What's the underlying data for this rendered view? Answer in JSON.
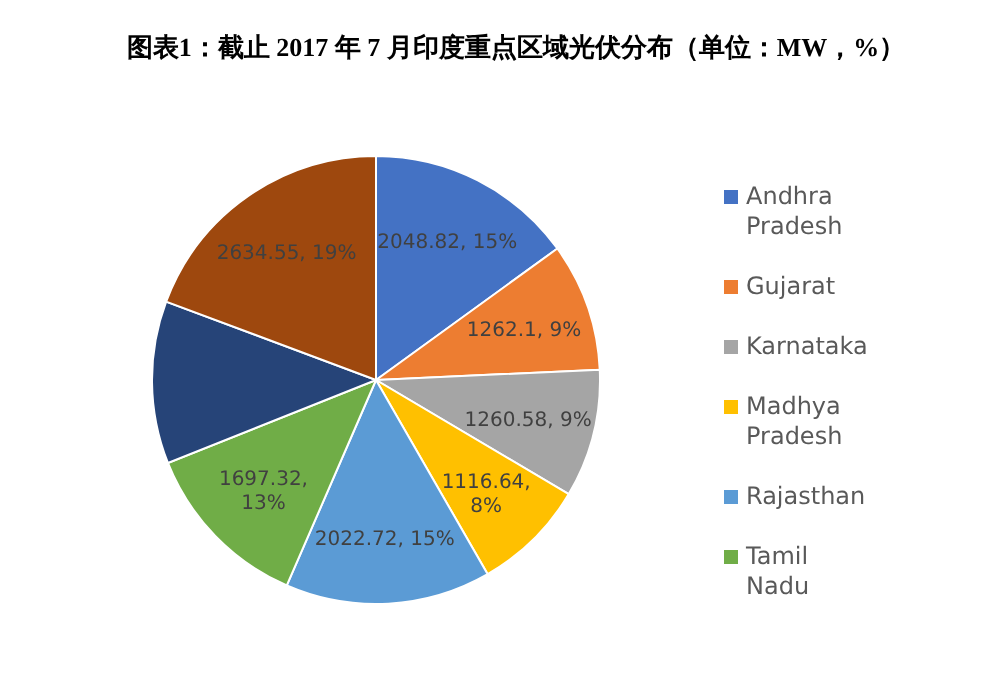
{
  "chart_data": {
    "type": "pie",
    "title": "图表1：截止 2017 年 7 月印度重点区域光伏分布（单位：MW，%）",
    "categories": [
      "Andhra Pradesh",
      "Gujarat",
      "Karnataka",
      "Madhya Pradesh",
      "Rajasthan",
      "Tamil Nadu",
      null,
      null
    ],
    "values": [
      2048.82,
      1262.1,
      1260.58,
      1116.64,
      2022.72,
      1697.32,
      1600,
      2634.55
    ],
    "value_labels": [
      "2048.82, 15%",
      "1262.1, 9%",
      "1260.58, 9%",
      "1116.64, 8%",
      "2022.72, 15%",
      "1697.32, 13%",
      null,
      "2634.55, 19%"
    ],
    "colors": [
      "#4472c4",
      "#ed7d31",
      "#a5a5a5",
      "#ffc000",
      "#5b9bd5",
      "#70ad47",
      "#264478",
      "#9e480e"
    ],
    "legend": "right"
  }
}
